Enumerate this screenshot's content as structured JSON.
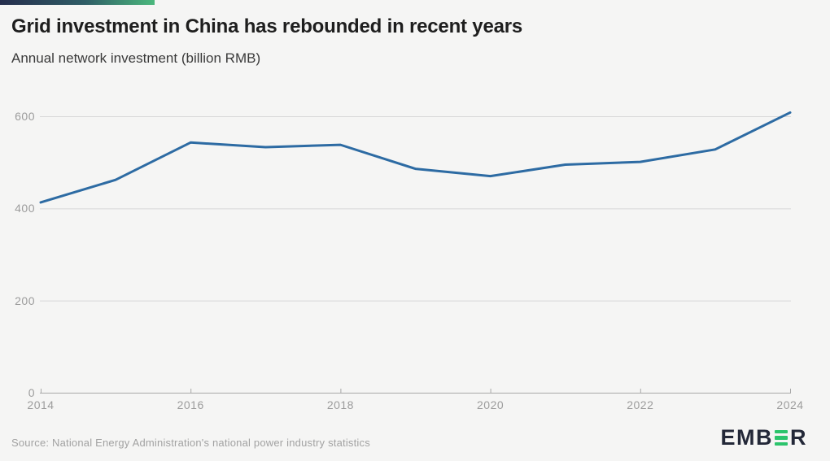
{
  "header": {
    "title": "Grid investment in China has rebounded in recent years",
    "subtitle": "Annual network investment (billion RMB)"
  },
  "chart_data": {
    "type": "line",
    "title": "Grid investment in China has rebounded in recent years",
    "ylabel": "Annual network investment (billion RMB)",
    "x": [
      2014,
      2015,
      2016,
      2017,
      2018,
      2019,
      2020,
      2021,
      2022,
      2023,
      2024
    ],
    "values": [
      413,
      462,
      543,
      533,
      538,
      486,
      470,
      495,
      501,
      528,
      608
    ],
    "xticks": [
      2014,
      2016,
      2018,
      2020,
      2022,
      2024
    ],
    "yticks": [
      0,
      200,
      400,
      600
    ],
    "ylim": [
      0,
      650
    ],
    "xlim": [
      2014,
      2024
    ],
    "grid": true,
    "legend_position": "none",
    "line_color": "#2d6ba3"
  },
  "footer": {
    "source": "Source: National Energy Administration's national power industry statistics",
    "logo": {
      "left": "EMB",
      "right": "R"
    }
  },
  "colors": {
    "background": "#f5f5f4",
    "accent_gradient_start": "#262e4d",
    "accent_gradient_end": "#4bb87d",
    "line": "#2d6ba3",
    "grid": "#d8d8d8",
    "axis": "#a8a8a8",
    "tick_label": "#9c9c9c",
    "logo_dark": "#232838",
    "logo_green": "#2cc46c"
  }
}
